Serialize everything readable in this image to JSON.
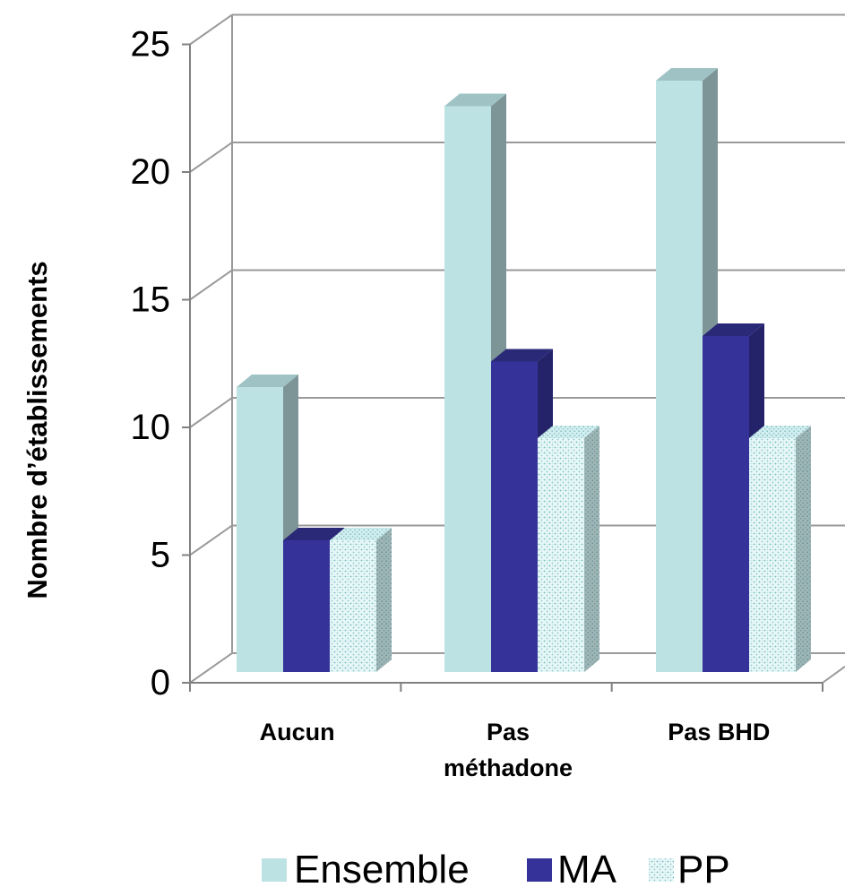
{
  "chart_data": {
    "type": "bar",
    "title": "",
    "xlabel": "",
    "ylabel": "Nombre d’établissements",
    "ylim": [
      0,
      25
    ],
    "yticks": [
      0,
      5,
      10,
      15,
      20,
      25
    ],
    "categories": [
      "Aucun",
      "Pas méthadone",
      "Pas BHD"
    ],
    "category_label_lines": [
      [
        "Aucun"
      ],
      [
        "Pas",
        "méthadone"
      ],
      [
        "Pas BHD"
      ]
    ],
    "series": [
      {
        "name": "Ensemble",
        "values": [
          12,
          23,
          24
        ],
        "color": "#bde2e3",
        "pattern": "solid"
      },
      {
        "name": "MA",
        "values": [
          6,
          13,
          14
        ],
        "color": "#353399",
        "pattern": "solid"
      },
      {
        "name": "PP",
        "values": [
          6,
          10,
          10
        ],
        "color": "#bfe6e8",
        "pattern": "dotted"
      }
    ],
    "grid": true,
    "style": "3d-clustered-column",
    "legend_position": "bottom"
  }
}
